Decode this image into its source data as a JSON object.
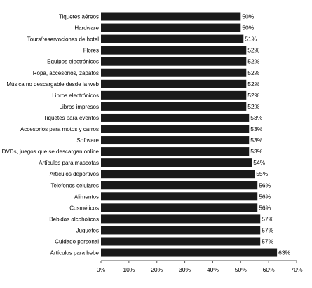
{
  "chart_data": {
    "type": "bar",
    "orientation": "horizontal",
    "title": "",
    "xlabel": "",
    "ylabel": "",
    "xlim": [
      0,
      70
    ],
    "grid": false,
    "legend": "none",
    "bar_color": "#1a1a1a",
    "categories": [
      "Tiquetes aéreos",
      "Hardware",
      "Tours/reservaciones de hotel",
      "Flores",
      "Equipos electrónicos",
      "Ropa, accesorios, zapatos",
      "Música no descargable desde la web",
      "Libros electrónicos",
      "Libros impresos",
      "Tiquetes para eventos",
      "Accesorios para motos y carros",
      "Software",
      "Videos, DVDs, juegos que se descargan online",
      "Artículos para mascotas",
      "Artículos deportivos",
      "Teléfonos celulares",
      "Alimentos",
      "Cosméticos",
      "Bebidas alcohólicas",
      "Juguetes",
      "Cuidado personal",
      "Artículos para bebe"
    ],
    "values": [
      50,
      50,
      51,
      52,
      52,
      52,
      52,
      52,
      52,
      53,
      53,
      53,
      53,
      54,
      55,
      56,
      56,
      56,
      57,
      57,
      57,
      63
    ],
    "value_labels": [
      "50%",
      "50%",
      "51%",
      "52%",
      "52%",
      "52%",
      "52%",
      "52%",
      "52%",
      "53%",
      "53%",
      "53%",
      "53%",
      "54%",
      "55%",
      "56%",
      "56%",
      "56%",
      "57%",
      "57%",
      "57%",
      "63%"
    ],
    "x_ticks": [
      0,
      10,
      20,
      30,
      40,
      50,
      60,
      70
    ],
    "x_tick_labels": [
      "0%",
      "10%",
      "20%",
      "30%",
      "40%",
      "50%",
      "60%",
      "70%"
    ]
  }
}
